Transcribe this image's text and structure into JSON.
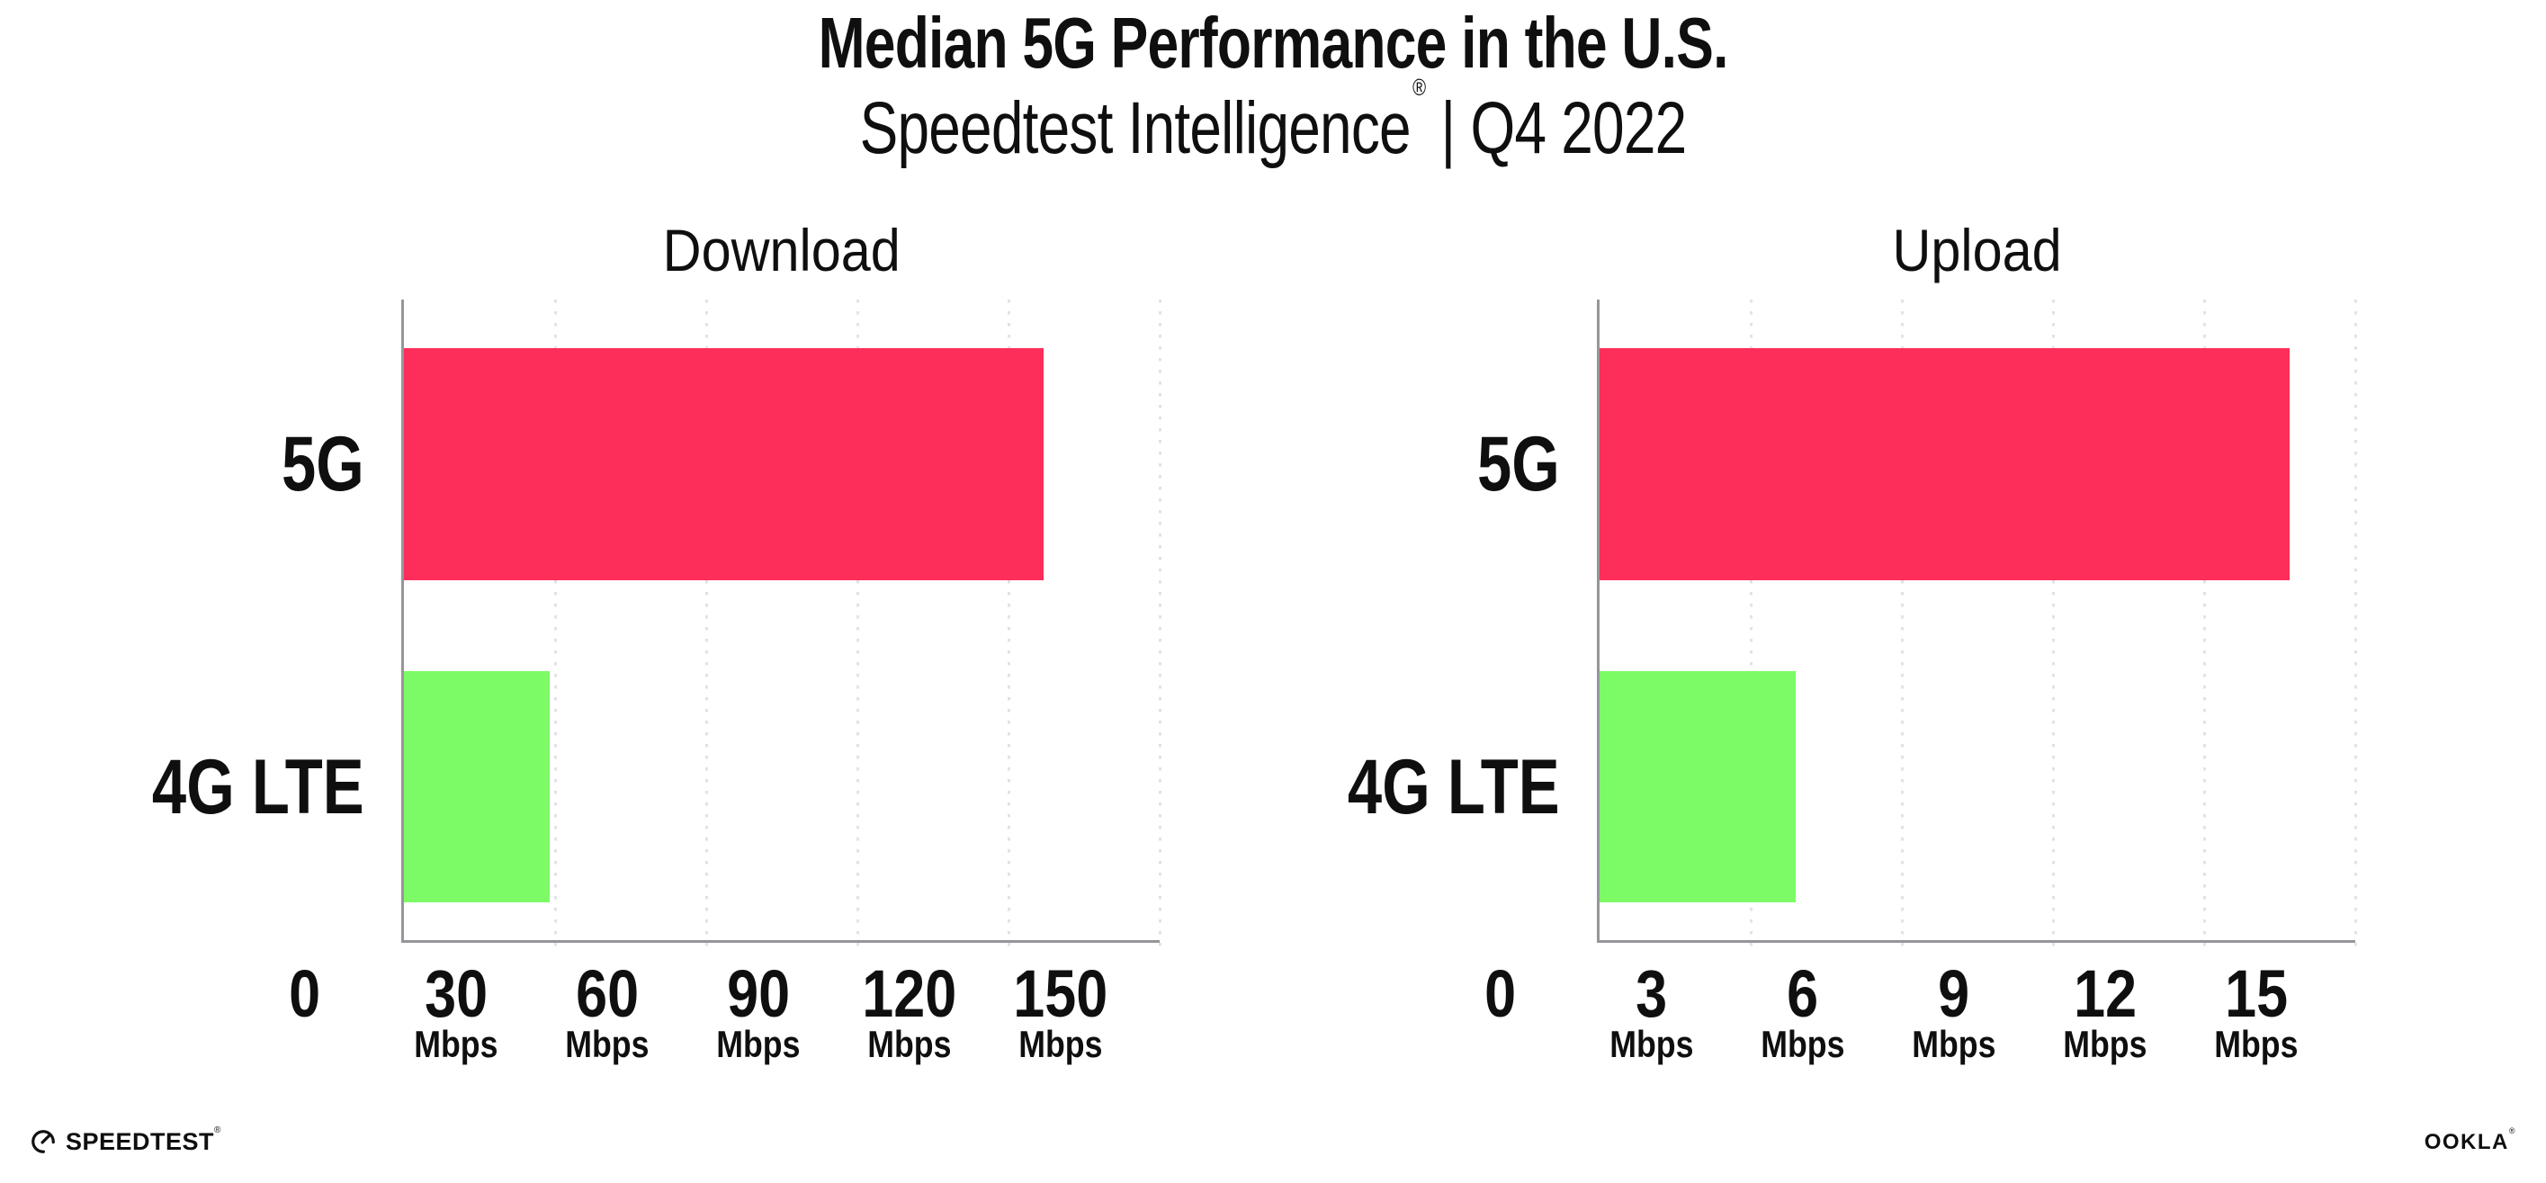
{
  "header": {
    "title": "Median 5G Performance in the U.S.",
    "subtitle_brand": "Speedtest Intelligence",
    "subtitle_reg": "®",
    "subtitle_divider": "|",
    "subtitle_period": "Q4 2022"
  },
  "chart_data": [
    {
      "type": "bar",
      "orientation": "horizontal",
      "title": "Download",
      "categories": [
        "5G",
        "4G LTE"
      ],
      "values": [
        127,
        29
      ],
      "value_unit": "Mbps",
      "xlim": [
        0,
        150
      ],
      "xticks": [
        0,
        30,
        60,
        90,
        120,
        150
      ],
      "xtick_unit": "Mbps",
      "bar_colors": [
        "#fd2e59",
        "#7dfb66"
      ],
      "grid": "vertical-dotted",
      "legend": "none"
    },
    {
      "type": "bar",
      "orientation": "horizontal",
      "title": "Upload",
      "categories": [
        "5G",
        "4G LTE"
      ],
      "values": [
        13.7,
        3.9
      ],
      "value_unit": "Mbps",
      "xlim": [
        0,
        15
      ],
      "xticks": [
        0,
        3,
        6,
        9,
        12,
        15
      ],
      "xtick_unit": "Mbps",
      "bar_colors": [
        "#fd2e59",
        "#7dfb66"
      ],
      "grid": "vertical-dotted",
      "legend": "none"
    }
  ],
  "footer": {
    "speedtest_icon": "gauge-icon",
    "speedtest_wordmark": "SPEEDTEST",
    "speedtest_reg": "®",
    "ookla_wordmark": "OOKLA",
    "ookla_reg": "®"
  },
  "colors": {
    "bar_5g": "#fd2e59",
    "bar_4g_lte": "#7dfb66",
    "axis": "#96969a",
    "gridline": "#e1e1ec",
    "text": "#0f0f0f",
    "background": "#ffffff"
  }
}
